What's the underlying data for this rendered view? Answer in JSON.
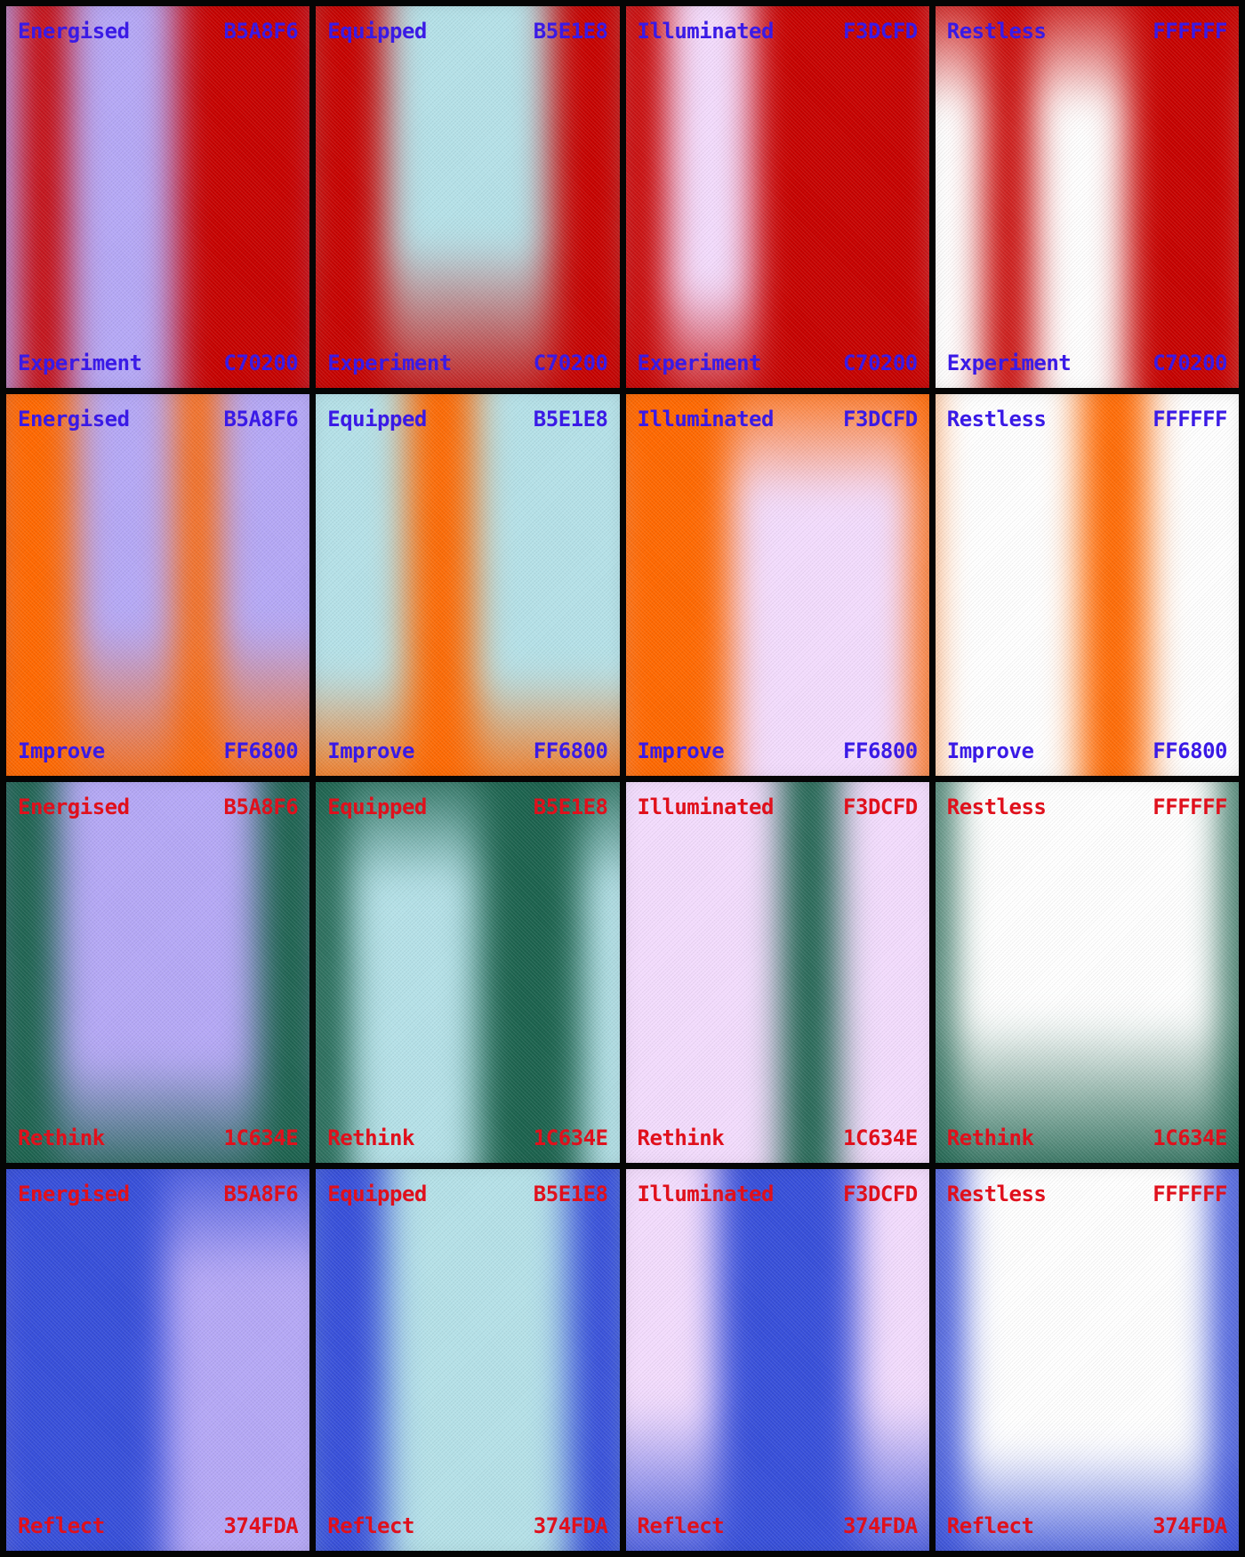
{
  "columns": [
    {
      "word": "Energised",
      "hex": "B5A8F6",
      "color": "#b5a8f6"
    },
    {
      "word": "Equipped",
      "hex": "B5E1E8",
      "color": "#b5e1e8"
    },
    {
      "word": "Illuminated",
      "hex": "F3DCFD",
      "color": "#f3dcfd"
    },
    {
      "word": "Restless",
      "hex": "FFFFFF",
      "color": "#ffffff"
    }
  ],
  "rows": [
    {
      "word": "Experiment",
      "hex": "C70200",
      "color": "#c70200",
      "text_color": "#3a1ae6"
    },
    {
      "word": "Improve",
      "hex": "FF6800",
      "color": "#ff6800",
      "text_color": "#3a1ae6"
    },
    {
      "word": "Rethink",
      "hex": "1C634E",
      "color": "#1c634e",
      "text_color": "#e0101c"
    },
    {
      "word": "Reflect",
      "hex": "374FDA",
      "color": "#374fda",
      "text_color": "#e0101c"
    }
  ]
}
